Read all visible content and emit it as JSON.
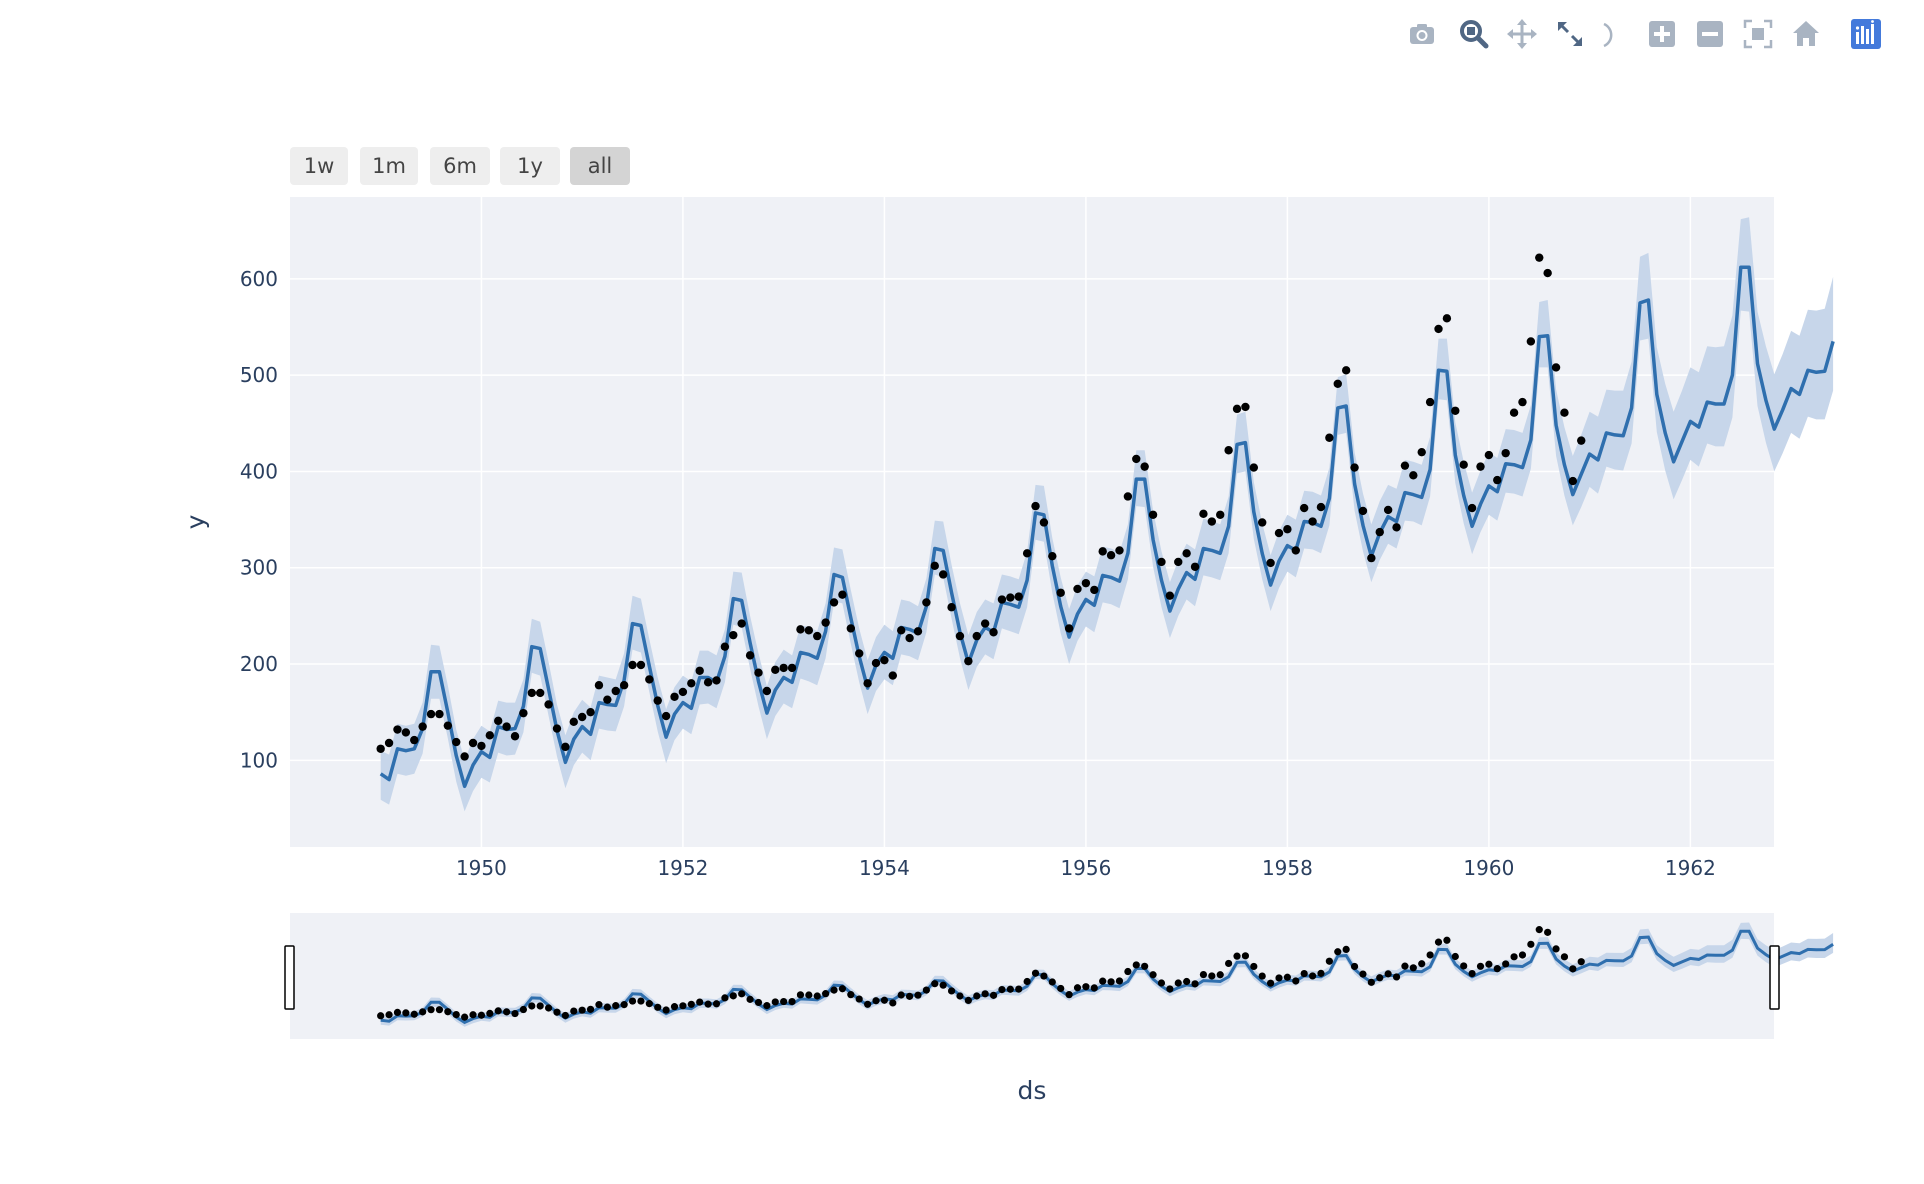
{
  "modebar": {
    "icons": [
      "camera-icon",
      "zoom-icon",
      "pan-icon",
      "autoscale-icon",
      "lasso-icon",
      "zoom-in-icon",
      "zoom-out-icon",
      "reset-axes-icon",
      "home-icon",
      "plotly-logo-icon"
    ],
    "colors": {
      "icon": "#a9b4c2",
      "active": "#506784",
      "logo": "#447adb"
    }
  },
  "range_selector": {
    "buttons": [
      "1w",
      "1m",
      "6m",
      "1y",
      "all"
    ],
    "active": "all"
  },
  "colors": {
    "plot_bg": "#eff1f6",
    "grid": "#ffffff",
    "forecast_line": "#2f6fae",
    "uncertainty_band": "#c7d6ea",
    "actual_points": "#000000"
  },
  "chart_data": {
    "type": "line",
    "xlabel": "ds",
    "ylabel": "y",
    "x_ticks": [
      "1950",
      "1952",
      "1954",
      "1956",
      "1958",
      "1960",
      "1962"
    ],
    "y_ticks": [
      "100",
      "200",
      "300",
      "400",
      "500",
      "600"
    ],
    "xlim": [
      1948.1,
      1962.83
    ],
    "ylim": [
      10,
      685
    ],
    "x_start": 1949.0,
    "x_step_months": 1,
    "series": [
      {
        "kind": "scatter",
        "values": [
          112,
          118,
          132,
          129,
          121,
          135,
          148,
          148,
          136,
          119,
          104,
          118,
          115,
          126,
          141,
          135,
          125,
          149,
          170,
          170,
          158,
          133,
          114,
          140,
          145,
          150,
          178,
          163,
          172,
          178,
          199,
          199,
          184,
          162,
          146,
          166,
          171,
          180,
          193,
          181,
          183,
          218,
          230,
          242,
          209,
          191,
          172,
          194,
          196,
          196,
          236,
          235,
          229,
          243,
          264,
          272,
          237,
          211,
          180,
          201,
          204,
          188,
          235,
          227,
          234,
          264,
          302,
          293,
          259,
          229,
          203,
          229,
          242,
          233,
          267,
          269,
          270,
          315,
          364,
          347,
          312,
          274,
          237,
          278,
          284,
          277,
          317,
          313,
          318,
          374,
          413,
          405,
          355,
          306,
          271,
          306,
          315,
          301,
          356,
          348,
          355,
          422,
          465,
          467,
          404,
          347,
          305,
          336,
          340,
          318,
          362,
          348,
          363,
          435,
          491,
          505,
          404,
          359,
          310,
          337,
          360,
          342,
          406,
          396,
          420,
          472,
          548,
          559,
          463,
          407,
          362,
          405,
          417,
          391,
          419,
          461,
          472,
          535,
          622,
          606,
          508,
          461,
          390,
          432
        ]
      },
      {
        "kind": "line",
        "values": [
          86,
          80,
          112,
          110,
          112,
          133,
          192,
          192,
          150,
          105,
          73,
          95,
          109,
          103,
          135,
          132,
          133,
          156,
          218,
          216,
          174,
          131,
          98,
          122,
          135,
          127,
          160,
          158,
          157,
          183,
          242,
          240,
          198,
          157,
          124,
          148,
          160,
          154,
          186,
          186,
          181,
          208,
          268,
          266,
          222,
          182,
          149,
          173,
          186,
          181,
          212,
          210,
          206,
          234,
          293,
          290,
          248,
          208,
          175,
          199,
          212,
          206,
          238,
          236,
          232,
          260,
          320,
          318,
          274,
          233,
          201,
          225,
          238,
          233,
          264,
          262,
          259,
          287,
          357,
          355,
          302,
          260,
          228,
          252,
          267,
          261,
          292,
          290,
          286,
          315,
          392,
          392,
          329,
          287,
          255,
          278,
          295,
          288,
          320,
          318,
          315,
          343,
          428,
          430,
          358,
          315,
          282,
          307,
          323,
          318,
          348,
          347,
          343,
          372,
          466,
          468,
          387,
          344,
          312,
          336,
          353,
          348,
          378,
          376,
          373,
          402,
          505,
          504,
          417,
          375,
          343,
          366,
          385,
          379,
          408,
          407,
          404,
          433,
          540,
          541,
          448,
          407,
          376,
          397,
          418,
          412,
          440,
          438,
          437,
          466,
          575,
          578,
          480,
          440,
          410,
          431,
          452,
          446,
          472,
          470,
          470,
          500,
          612,
          612,
          512,
          474,
          444,
          464,
          486,
          480,
          505,
          503,
          504,
          535
        ]
      },
      {
        "kind": "band-upper",
        "values": [
          110,
          106,
          138,
          136,
          138,
          160,
          220,
          219,
          178,
          132,
          100,
          122,
          136,
          130,
          162,
          160,
          160,
          184,
          247,
          244,
          202,
          158,
          126,
          150,
          163,
          155,
          188,
          186,
          184,
          211,
          271,
          268,
          226,
          186,
          153,
          176,
          188,
          182,
          214,
          214,
          209,
          236,
          296,
          295,
          250,
          211,
          177,
          202,
          215,
          209,
          240,
          239,
          234,
          263,
          321,
          319,
          277,
          237,
          204,
          228,
          241,
          234,
          267,
          265,
          260,
          289,
          349,
          348,
          303,
          263,
          230,
          254,
          267,
          263,
          293,
          291,
          288,
          317,
          386,
          385,
          331,
          290,
          257,
          282,
          296,
          291,
          322,
          320,
          316,
          345,
          422,
          422,
          359,
          317,
          285,
          308,
          325,
          319,
          351,
          349,
          345,
          374,
          459,
          462,
          389,
          346,
          313,
          338,
          355,
          350,
          380,
          379,
          375,
          404,
          498,
          501,
          420,
          377,
          345,
          369,
          386,
          382,
          412,
          410,
          407,
          436,
          538,
          538,
          451,
          410,
          378,
          401,
          420,
          414,
          444,
          443,
          440,
          469,
          576,
          578,
          485,
          446,
          416,
          438,
          462,
          457,
          485,
          484,
          484,
          514,
          623,
          627,
          529,
          491,
          462,
          484,
          508,
          503,
          530,
          529,
          530,
          562,
          662,
          664,
          566,
          530,
          501,
          522,
          546,
          541,
          568,
          567,
          569,
          602
        ]
      },
      {
        "kind": "band-lower",
        "values": [
          59,
          54,
          86,
          84,
          86,
          107,
          164,
          164,
          123,
          78,
          47,
          68,
          82,
          77,
          108,
          105,
          106,
          129,
          191,
          188,
          146,
          104,
          71,
          95,
          108,
          100,
          133,
          131,
          130,
          156,
          215,
          212,
          171,
          130,
          97,
          121,
          133,
          127,
          158,
          159,
          154,
          181,
          241,
          238,
          195,
          156,
          122,
          146,
          159,
          154,
          185,
          182,
          178,
          206,
          265,
          263,
          221,
          181,
          148,
          172,
          184,
          178,
          210,
          208,
          204,
          233,
          293,
          290,
          247,
          206,
          173,
          197,
          210,
          205,
          237,
          234,
          231,
          259,
          329,
          327,
          274,
          232,
          200,
          224,
          239,
          233,
          264,
          262,
          258,
          288,
          364,
          363,
          301,
          259,
          227,
          250,
          267,
          260,
          292,
          290,
          287,
          315,
          398,
          400,
          330,
          288,
          255,
          279,
          296,
          290,
          320,
          319,
          315,
          344,
          438,
          440,
          359,
          317,
          285,
          308,
          325,
          320,
          349,
          348,
          344,
          374,
          475,
          474,
          388,
          346,
          314,
          337,
          355,
          349,
          378,
          377,
          374,
          403,
          508,
          508,
          416,
          375,
          344,
          363,
          384,
          377,
          405,
          402,
          401,
          429,
          536,
          538,
          441,
          401,
          371,
          391,
          412,
          405,
          429,
          426,
          426,
          456,
          567,
          566,
          468,
          430,
          400,
          419,
          440,
          434,
          457,
          454,
          454,
          484
        ]
      }
    ],
    "range_slider": {
      "visible": true,
      "range": [
        "1948.1",
        "1962.83"
      ]
    }
  }
}
